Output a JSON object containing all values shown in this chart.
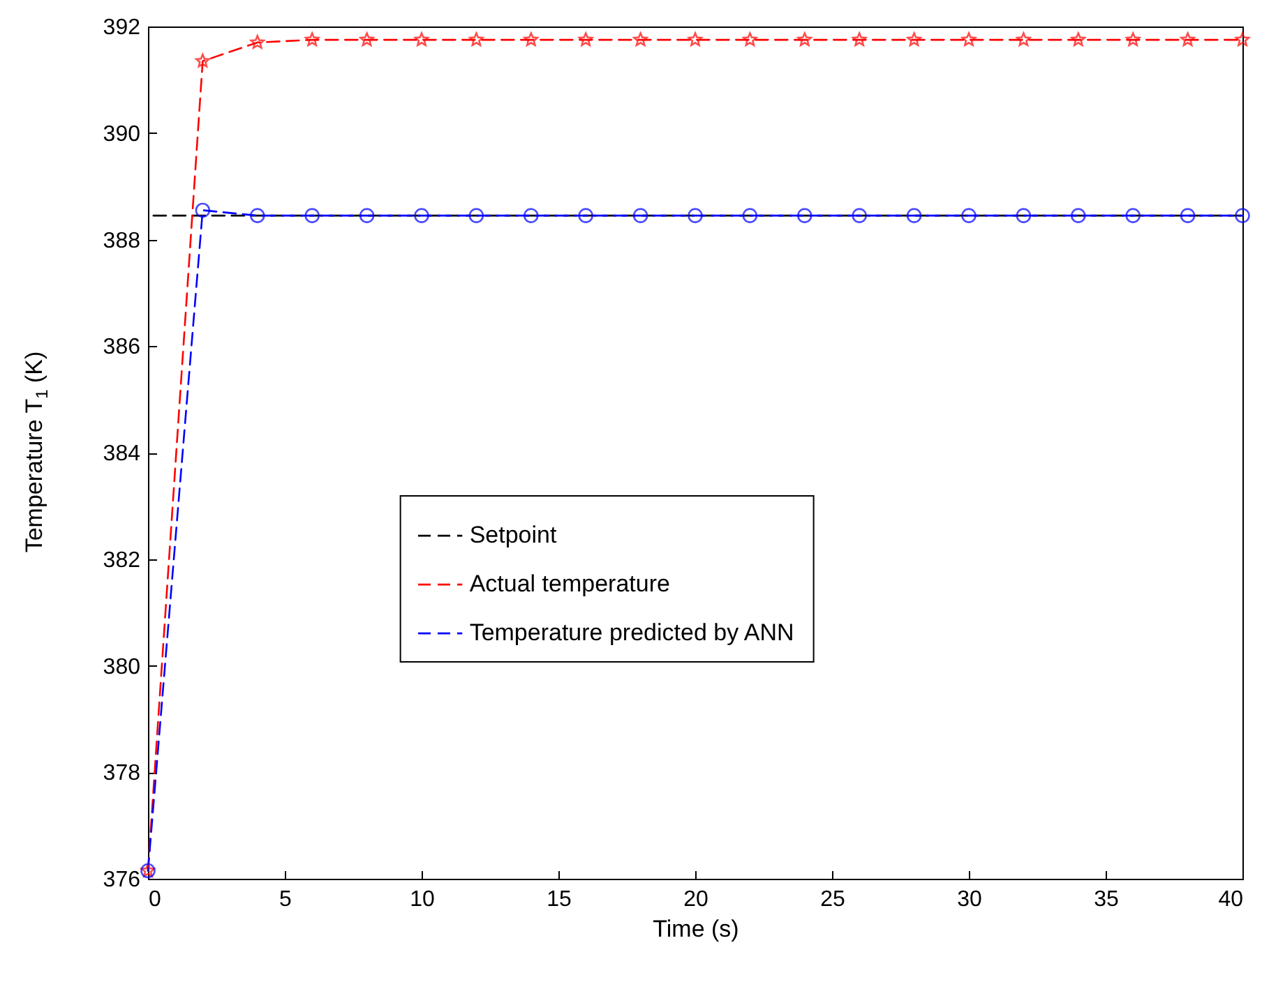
{
  "chart_data": {
    "type": "line",
    "xlabel": "Time (s)",
    "ylabel": "Temperature T$_{1}$ (K)",
    "xlim": [
      0,
      40
    ],
    "xticks": [
      0,
      5,
      10,
      15,
      20,
      25,
      30,
      35,
      40
    ],
    "ylim": [
      376,
      392
    ],
    "yticks": [
      376,
      378,
      380,
      382,
      384,
      386,
      388,
      390,
      392
    ],
    "grid": false,
    "legend": "center",
    "line_style": "dashed",
    "series": [
      {
        "name": "Setpoint",
        "color": "#000000",
        "marker": "none",
        "x": [
          0.2,
          40
        ],
        "values": [
          388.45,
          388.45
        ]
      },
      {
        "name": "Actual temperature",
        "color": "#ff0000",
        "marker": "star",
        "x": [
          0,
          2,
          4,
          6,
          8,
          10,
          12,
          14,
          16,
          18,
          20,
          22,
          24,
          26,
          28,
          30,
          32,
          34,
          36,
          38,
          40
        ],
        "values": [
          376.15,
          391.35,
          391.7,
          391.75,
          391.75,
          391.75,
          391.75,
          391.75,
          391.75,
          391.75,
          391.75,
          391.75,
          391.75,
          391.75,
          391.75,
          391.75,
          391.75,
          391.75,
          391.75,
          391.75,
          391.75
        ]
      },
      {
        "name": "Temperature predicted by ANN",
        "color": "#0000ff",
        "marker": "circle",
        "x": [
          0,
          2,
          4,
          6,
          8,
          10,
          12,
          14,
          16,
          18,
          20,
          22,
          24,
          26,
          28,
          30,
          32,
          34,
          36,
          38,
          40
        ],
        "values": [
          376.15,
          388.55,
          388.45,
          388.45,
          388.45,
          388.45,
          388.45,
          388.45,
          388.45,
          388.45,
          388.45,
          388.45,
          388.45,
          388.45,
          388.45,
          388.45,
          388.45,
          388.45,
          388.45,
          388.45,
          388.45
        ]
      }
    ]
  }
}
